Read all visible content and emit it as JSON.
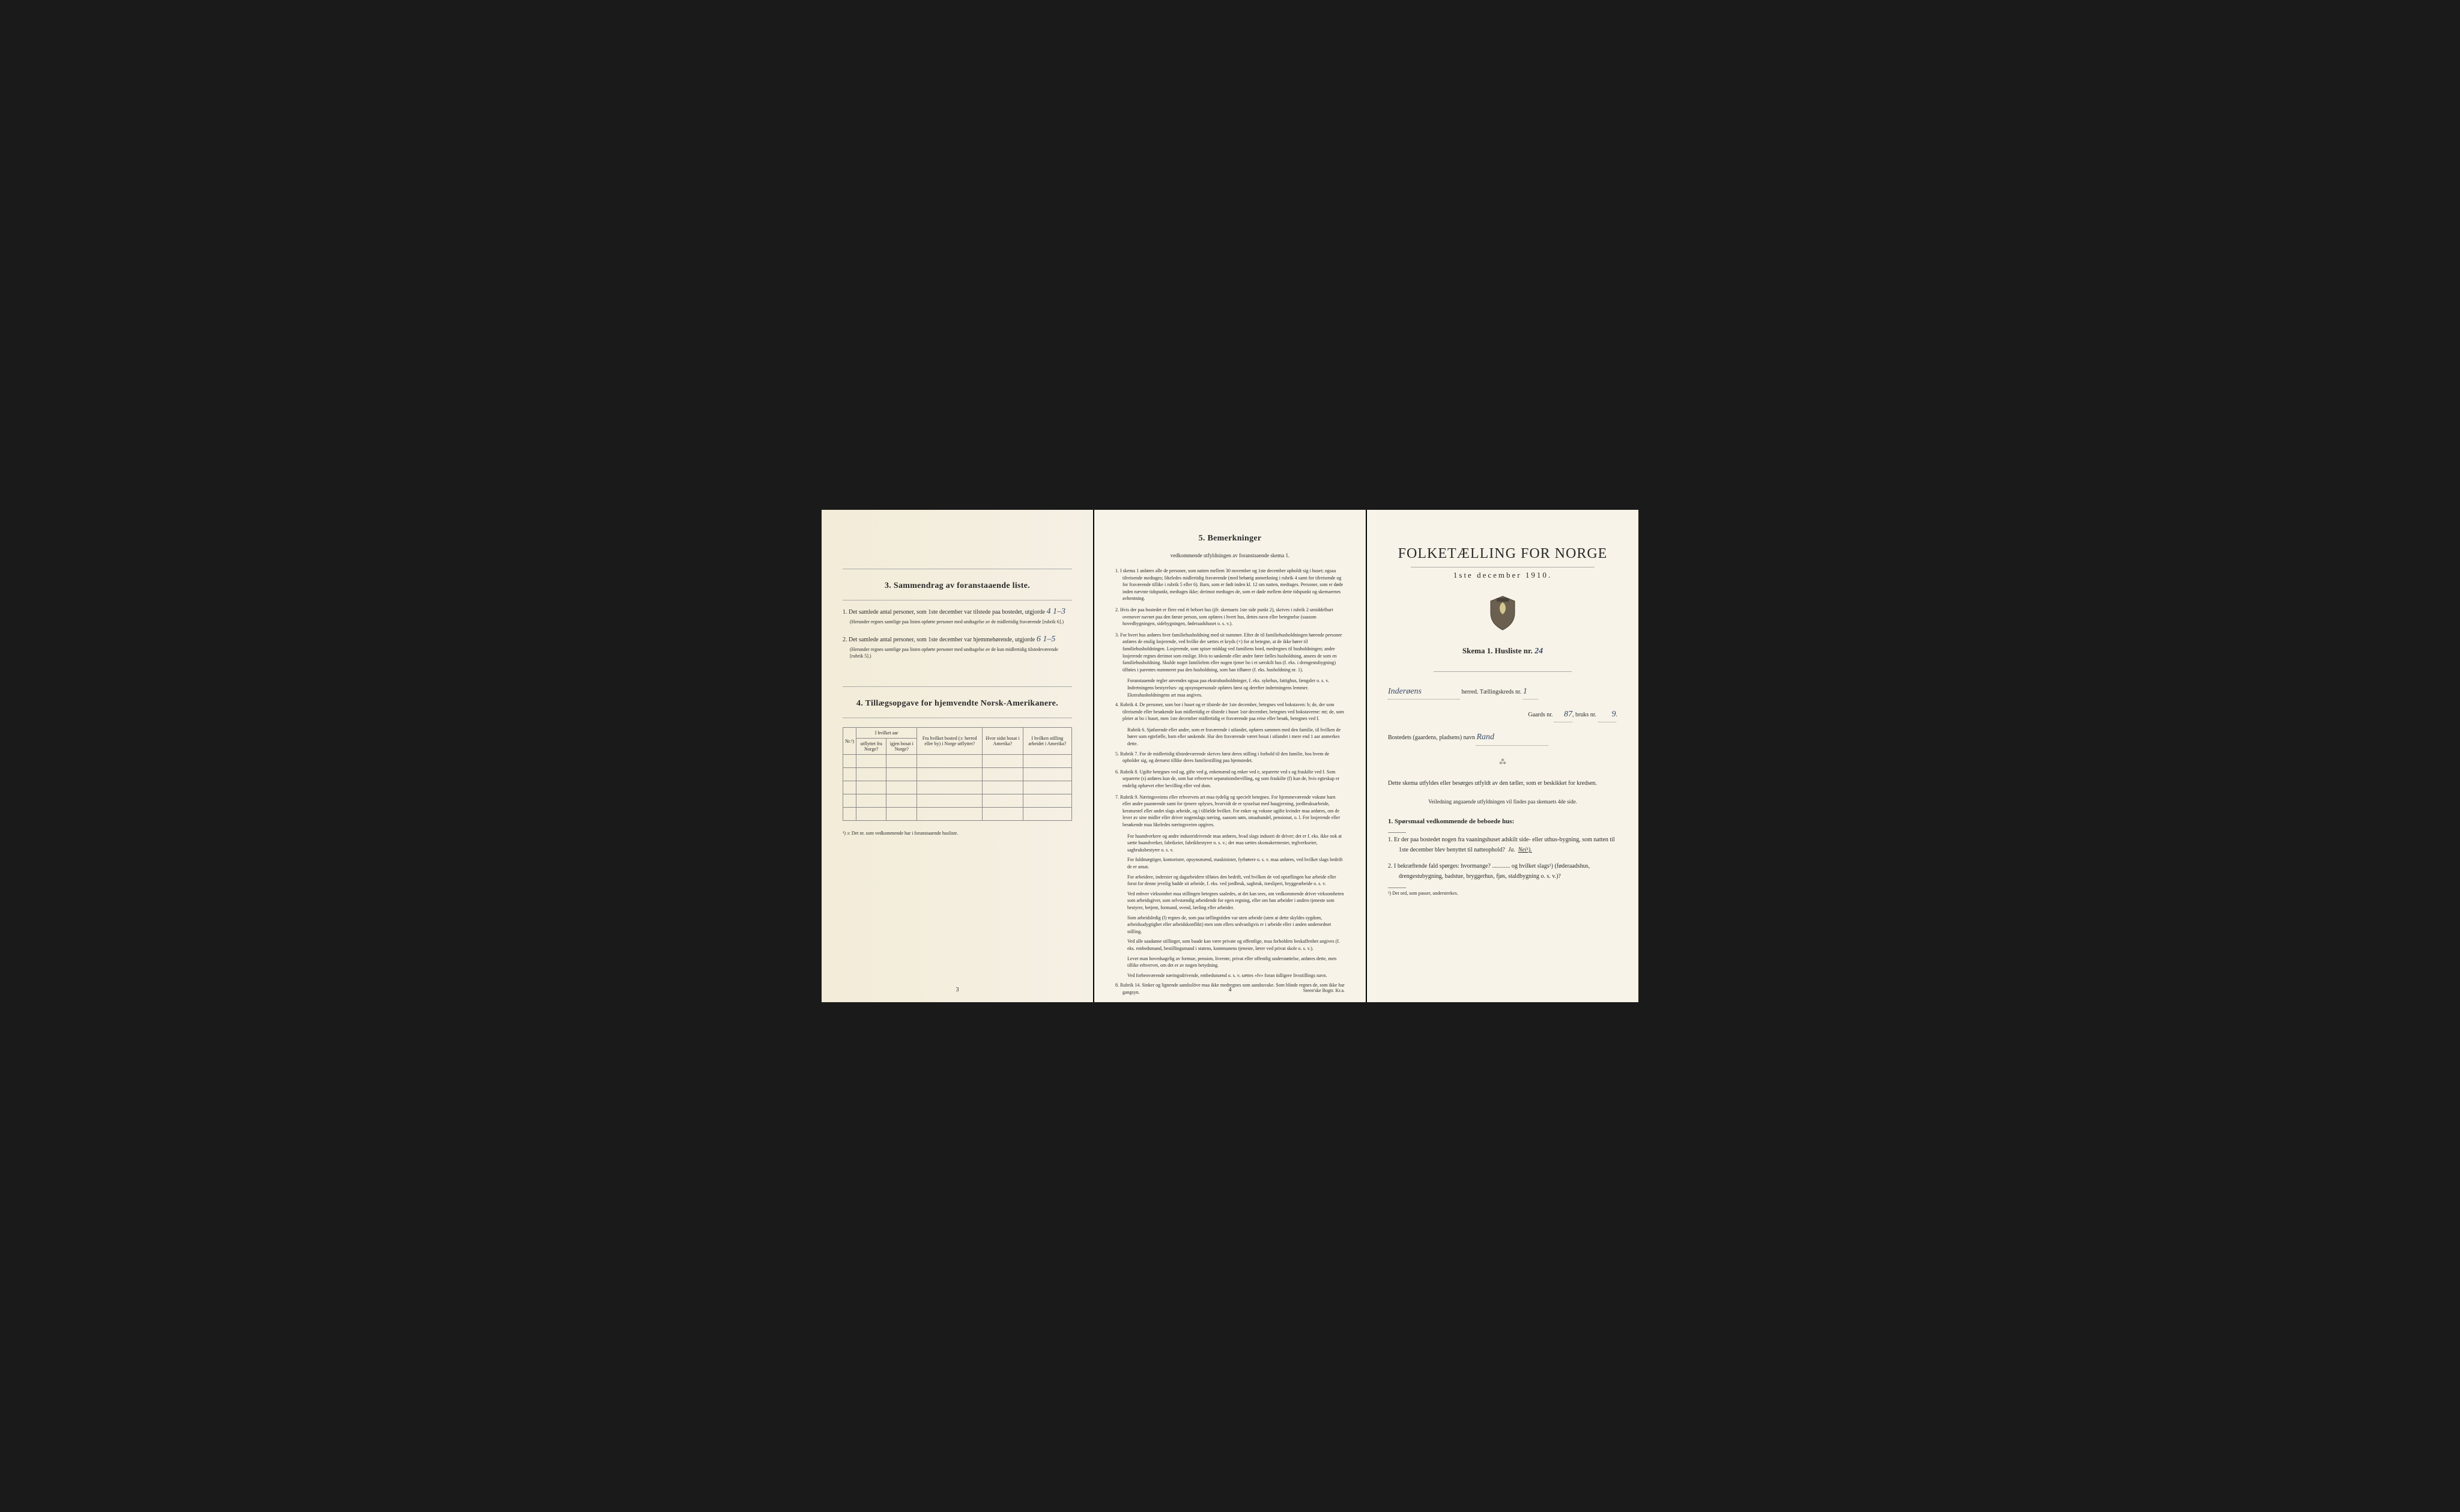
{
  "page1": {
    "section3_title": "3. Sammendrag av foranstaaende liste.",
    "item1_text": "1. Det samlede antal personer, som 1ste december var tilstede paa bostedet, utgjorde",
    "item1_value": "4   1–3",
    "item1_note": "(Herunder regnes samtlige paa listen opførte personer med undtagelse av de midlertidig fraværende [rubrik 6].)",
    "item2_text": "2. Det samlede antal personer, som 1ste december var hjemmehørende, utgjorde",
    "item2_value": "6   1–5",
    "item2_note": "(Herunder regnes samtlige paa listen opførte personer med undtagelse av de kun midlertidig tilstedeværende [rubrik 5].)",
    "section4_title": "4. Tillægsopgave for hjemvendte Norsk-Amerikanere.",
    "table": {
      "headers": {
        "col1": "Nr.¹)",
        "col2_top": "I hvilket aar",
        "col2a": "utflyttet fra Norge?",
        "col2b": "igjen bosat i Norge?",
        "col3": "Fra hvilket bosted (ɔ: herred eller by) i Norge utflyttet?",
        "col4": "Hvor sidst bosat i Amerika?",
        "col5": "I hvilken stilling arbeidet i Amerika?"
      },
      "empty_rows": 5
    },
    "table_footnote": "¹) ɔ: Det nr. som vedkommende har i foranstaaende husliste.",
    "page_number": "3"
  },
  "page2": {
    "title": "5. Bemerkninger",
    "subtitle": "vedkommende utfyldningen av foranstaaende skema 1.",
    "items": [
      "1. I skema 1 anføres alle de personer, som natten mellem 30 november og 1ste december opholdt sig i huset; ogsaa tilreisende medtages; likeledes midlertidig fraværende (med behørig anmerkning i rubrik 4 samt for tilreisende og for fraværende tillike i rubrik 5 eller 6). Barn, som er født inden kl. 12 om natten, medtages. Personer, som er døde inden nævnte tidspunkt, medtages ikke; derimot medtages de, som er døde mellem dette tidspunkt og skemaernes avhentning.",
      "2. Hvis der paa bostedet er flere end ét beboet hus (jfr. skemaets 1ste side punkt 2), skrives i rubrik 2 umiddelbart ovenover navnet paa den første person, som opføres i hvert hus, dettes navn eller betegnelse (saasom hovedbygningen, sidebygningen, føderaadshuset o. s. v.).",
      "3. For hvert hus anføres hver familiehusholdning med sit nummer. Efter de til familiehusholdningen hørende personer anføres de enslig losjerende, ved hvilke der sættes et kryds (×) for at betegne, at de ikke hører til familiehusholdningen. Losjerende, som spiser middag ved familiens bord, medregnes til husholdningen; andre losjerende regnes derimot som enslige. Hvis to søskende eller andre fører fælles husholdning, ansees de som en familiehusholdning. Skulde noget familielem eller nogen tjener bo i et særskilt hus (f. eks. i drengestubygning) tilføies i parentes nummeret paa den husholdning, som han tilhører (f. eks. husholdning nr. 1).",
      "Foranstaaende regler anvendes ogsaa paa ekstrahusholdninger, f. eks. sykehus, fattighus, fængsler o. s. v. Indretningens bestyrelses- og opsynspersonale opføres først og derefter indretningens lemmer. Ekstrahusholdningens art maa angives.",
      "4. Rubrik 4. De personer, som bor i huset og er tilstede der 1ste december, betegnes ved bokstaven: b; de, der som tilreisende eller besøkende kun midlertidig er tilstede i huset 1ste december, betegnes ved bokstaverne: mt; de, som pleier at bo i huset, men 1ste december midlertidig er fraværende paa reise eller besøk, betegnes ved f.",
      "Rubrik 6. Sjøfarende eller andre, som er fraværende i utlandet, opføres sammen med den familie, til hvilken de hører som egtefælle, barn eller søskende. Har den fraværende været bosat i utlandet i mere end 1 aar anmerkes dette.",
      "5. Rubrik 7. For de midlertidig tilstedeværende skrives først deres stilling i forhold til den familie, hos hvem de opholder sig, og dernæst tillike deres familiestilling paa hjemstedet.",
      "6. Rubrik 8. Ugifte betegnes ved ug, gifte ved g, enkemænd og enker ved e, separerte ved s og fraskilte ved f. Som separerte (s) anføres kun de, som har erhvervet separationsbevilling, og som fraskilte (f) kun de, hvis egteskap er endelig ophævet efter bevilling eller ved dom.",
      "7. Rubrik 9. Næringsveiens eller erhvervets art maa tydelig og specielt betegnes. For hjemmeværende voksne barn eller andre paarørende samt for tjenere oplyses, hvorvidt de er sysselsat med haugjerning, jordbruksarbeide, kreaturstel eller andet slags arbeide, og i tilfælde hvilket. For enker og voksne ugifte kvinder maa anføres, om de lever av sine midler eller driver nogenslags næring, saasom søm, smaahandel, pensionat, o. l. For losjerende eller besøkende maa likeledes næringsveien opgives.",
      "For haandverkere og andre industridrivende maa anføres, hvad slags industri de driver; det er f. eks. ikke nok at sætte haandverker, fabrikeier, fabrikbestyrer o. s. v.; der maa sættes skomakermester, teglverkseier, sagbruksbestyrer o. s. v.",
      "For fuldmægtiger, kontorister, opsynsmænd, maskinister, fyrbøtere o. s. v. maa anføres, ved hvilket slags bedrift de er ansat.",
      "For arbeidere, inderster og dagarbeidere tilføies den bedrift, ved hvilken de ved optællingen har arbeide eller forut for denne jevnlig hadde sit arbeide, f. eks. ved jordbruk, sagbruk, træsliperi, bryggearbeide o. s. v.",
      "Ved enhver virksomhet maa stillingen betegnes saaledes, at det kan sees, om vedkommende driver virksomheten som arbeidsgiver, som selvstændig arbeidende for egen regning, eller om han arbeider i andres tjeneste som bestyrer, betjent, formand, svend, lærling eller arbeider.",
      "Som arbeidsledig (l) regnes de, som paa tællingstiden var uten arbeide (uten at dette skyldes sygdom, arbeidsudygtighet eller arbeidskonflikt) men som ellers sedvanligvis er i arbeide eller i anden underordnet stilling.",
      "Ved alle saadanne stillinger, som baade kan være private og offentlige, maa forholdets beskaffenhet angives (f. eks. embedsmand, bestillingsmand i statens, kommunens tjeneste, lærer ved privat skole o. s. v.).",
      "Lever man hovedsagelig av formue, pension, livrente, privat eller offentlig understøttelse, anføres dette, men tillike erhvervet, om det er av nogen betydning.",
      "Ved forhenværende næringsdrivende, embedsmænd o. s. v. sættes «fv» foran tidligere livsstillings navn.",
      "8. Rubrik 14. Sinker og lignende aandsslöve maa ikke medregnes som aandssvake. Som blinde regnes de, som ikke har gangsyn."
    ],
    "page_number": "4",
    "printer": "Steen'ske Bogtr. Kr.a."
  },
  "page3": {
    "main_title": "FOLKETÆLLING FOR NORGE",
    "date": "1ste december 1910.",
    "skema_label": "Skema 1.  Husliste nr.",
    "skema_value": "24",
    "herred_value": "Inderøens",
    "herred_label": "herred.  Tællingskreds nr.",
    "kreds_value": "1",
    "gaard_label": "Gaards nr.",
    "gaard_value": "87",
    "bruk_label": "bruks nr.",
    "bruk_value": "9",
    "bosted_label": "Bostedets (gaardens, pladsens) navn",
    "bosted_value": "Rand",
    "instruction": "Dette skema utfyldes eller besørges utfyldt av den tæller, som er beskikket for kredsen.",
    "instruction_sub": "Veiledning angaaende utfyldningen vil findes paa skemaets 4de side.",
    "q_title": "1. Spørsmaal vedkommende de beboede hus:",
    "q1": "1. Er der paa bostedet nogen fra vaaningshuset adskilt side- eller uthus-bygning, som natten til 1ste december blev benyttet til natteophold?",
    "q1_ja": "Ja.",
    "q1_nei": "Nei¹).",
    "q2": "2. I bekræftende fald spørges: hvormange? ............ og hvilket slags¹) (føderaadshus, drengestubygning, badstue, bryggerhus, fjøs, staldbygning o. s. v.)?",
    "footnote": "¹) Det ord, som passer, understrekes."
  }
}
